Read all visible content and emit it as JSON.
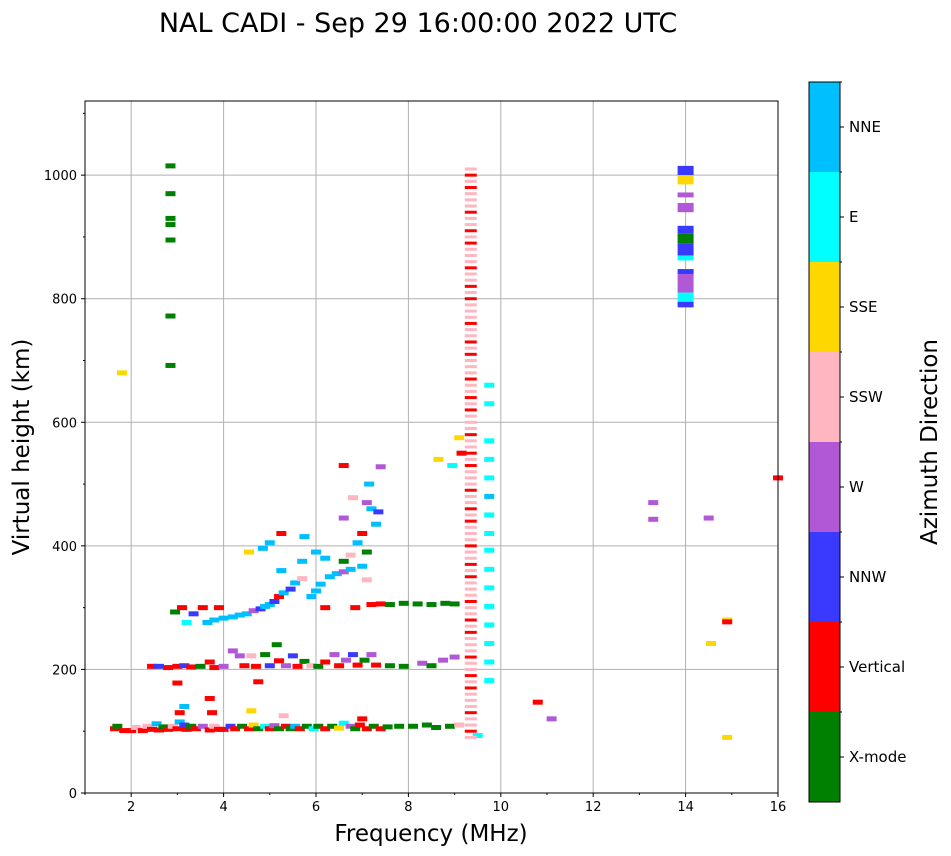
{
  "chart_data": {
    "type": "scatter",
    "title": "NAL CADI - Sep 29 16:00:00 2022 UTC",
    "xlabel": "Frequency (MHz)",
    "ylabel": "Virtual height (km)",
    "xlim": [
      1,
      16
    ],
    "ylim": [
      0,
      1120
    ],
    "xticks": [
      "2",
      "4",
      "6",
      "8",
      "10",
      "12",
      "14",
      "16"
    ],
    "yticks": [
      "0",
      "200",
      "400",
      "600",
      "800",
      "1000"
    ],
    "grid": true,
    "colorbar": {
      "label": "Azimuth Direction",
      "categories": [
        {
          "name": "X-mode",
          "color": "#008000"
        },
        {
          "name": "Vertical",
          "color": "#ff0000"
        },
        {
          "name": "NNW",
          "color": "#3a3aff"
        },
        {
          "name": "W",
          "color": "#b158d6"
        },
        {
          "name": "SSW",
          "color": "#ffb6c1"
        },
        {
          "name": "SSE",
          "color": "#ffd700"
        },
        {
          "name": "E",
          "color": "#00ffff"
        },
        {
          "name": "NNE",
          "color": "#00bfff"
        }
      ]
    },
    "points": [
      {
        "f": 1.65,
        "h": 104,
        "c": "Vertical"
      },
      {
        "f": 1.7,
        "h": 108,
        "c": "X-mode"
      },
      {
        "f": 1.85,
        "h": 101,
        "c": "Vertical"
      },
      {
        "f": 1.8,
        "h": 680,
        "c": "SSE"
      },
      {
        "f": 2.0,
        "h": 101,
        "c": "Vertical"
      },
      {
        "f": 2.1,
        "h": 106,
        "c": "SSW"
      },
      {
        "f": 2.25,
        "h": 101,
        "c": "Vertical"
      },
      {
        "f": 2.35,
        "h": 108,
        "c": "SSW"
      },
      {
        "f": 2.45,
        "h": 103,
        "c": "Vertical"
      },
      {
        "f": 2.55,
        "h": 112,
        "c": "NNE"
      },
      {
        "f": 2.6,
        "h": 102,
        "c": "Vertical"
      },
      {
        "f": 2.7,
        "h": 107,
        "c": "X-mode"
      },
      {
        "f": 2.8,
        "h": 103,
        "c": "Vertical"
      },
      {
        "f": 2.9,
        "h": 108,
        "c": "SSW"
      },
      {
        "f": 3.0,
        "h": 104,
        "c": "Vertical"
      },
      {
        "f": 3.05,
        "h": 115,
        "c": "NNE"
      },
      {
        "f": 3.15,
        "h": 110,
        "c": "NNW"
      },
      {
        "f": 3.2,
        "h": 103,
        "c": "Vertical"
      },
      {
        "f": 3.3,
        "h": 108,
        "c": "X-mode"
      },
      {
        "f": 3.4,
        "h": 104,
        "c": "Vertical"
      },
      {
        "f": 3.55,
        "h": 108,
        "c": "W"
      },
      {
        "f": 3.7,
        "h": 102,
        "c": "Vertical"
      },
      {
        "f": 3.8,
        "h": 108,
        "c": "SSW"
      },
      {
        "f": 3.9,
        "h": 103,
        "c": "Vertical"
      },
      {
        "f": 4.0,
        "h": 103,
        "c": "Vertical"
      },
      {
        "f": 4.15,
        "h": 108,
        "c": "NNW"
      },
      {
        "f": 4.25,
        "h": 104,
        "c": "Vertical"
      },
      {
        "f": 4.4,
        "h": 108,
        "c": "X-mode"
      },
      {
        "f": 4.55,
        "h": 104,
        "c": "Vertical"
      },
      {
        "f": 4.65,
        "h": 110,
        "c": "SSE"
      },
      {
        "f": 4.75,
        "h": 104,
        "c": "X-mode"
      },
      {
        "f": 4.9,
        "h": 108,
        "c": "E"
      },
      {
        "f": 5.0,
        "h": 104,
        "c": "Vertical"
      },
      {
        "f": 5.1,
        "h": 109,
        "c": "W"
      },
      {
        "f": 5.2,
        "h": 104,
        "c": "X-mode"
      },
      {
        "f": 5.35,
        "h": 108,
        "c": "Vertical"
      },
      {
        "f": 5.45,
        "h": 104,
        "c": "X-mode"
      },
      {
        "f": 5.55,
        "h": 108,
        "c": "NNE"
      },
      {
        "f": 5.65,
        "h": 104,
        "c": "Vertical"
      },
      {
        "f": 5.8,
        "h": 108,
        "c": "X-mode"
      },
      {
        "f": 5.95,
        "h": 104,
        "c": "E"
      },
      {
        "f": 6.05,
        "h": 108,
        "c": "X-mode"
      },
      {
        "f": 6.2,
        "h": 104,
        "c": "Vertical"
      },
      {
        "f": 6.35,
        "h": 108,
        "c": "X-mode"
      },
      {
        "f": 6.5,
        "h": 105,
        "c": "SSE"
      },
      {
        "f": 6.6,
        "h": 113,
        "c": "E"
      },
      {
        "f": 6.75,
        "h": 108,
        "c": "W"
      },
      {
        "f": 6.85,
        "h": 104,
        "c": "X-mode"
      },
      {
        "f": 6.95,
        "h": 110,
        "c": "Vertical"
      },
      {
        "f": 7.1,
        "h": 104,
        "c": "Vertical"
      },
      {
        "f": 7.25,
        "h": 108,
        "c": "X-mode"
      },
      {
        "f": 7.4,
        "h": 104,
        "c": "Vertical"
      },
      {
        "f": 7.55,
        "h": 107,
        "c": "X-mode"
      },
      {
        "f": 7.8,
        "h": 108,
        "c": "X-mode"
      },
      {
        "f": 8.1,
        "h": 108,
        "c": "X-mode"
      },
      {
        "f": 8.4,
        "h": 110,
        "c": "X-mode"
      },
      {
        "f": 8.6,
        "h": 106,
        "c": "X-mode"
      },
      {
        "f": 8.9,
        "h": 108,
        "c": "X-mode"
      },
      {
        "f": 9.1,
        "h": 110,
        "c": "SSW"
      },
      {
        "f": 3.0,
        "h": 178,
        "c": "Vertical"
      },
      {
        "f": 3.05,
        "h": 130,
        "c": "Vertical"
      },
      {
        "f": 3.15,
        "h": 140,
        "c": "NNE"
      },
      {
        "f": 3.7,
        "h": 153,
        "c": "Vertical"
      },
      {
        "f": 3.75,
        "h": 130,
        "c": "Vertical"
      },
      {
        "f": 4.6,
        "h": 133,
        "c": "SSE"
      },
      {
        "f": 4.75,
        "h": 180,
        "c": "Vertical"
      },
      {
        "f": 5.3,
        "h": 125,
        "c": "SSW"
      },
      {
        "f": 7.0,
        "h": 120,
        "c": "Vertical"
      },
      {
        "f": 9.5,
        "h": 93,
        "c": "E"
      },
      {
        "f": 10.8,
        "h": 147,
        "c": "Vertical"
      },
      {
        "f": 11.1,
        "h": 120,
        "c": "W"
      },
      {
        "f": 14.9,
        "h": 90,
        "c": "SSE"
      },
      {
        "f": 2.45,
        "h": 205,
        "c": "Vertical"
      },
      {
        "f": 2.6,
        "h": 205,
        "c": "NNW"
      },
      {
        "f": 2.8,
        "h": 203,
        "c": "Vertical"
      },
      {
        "f": 3.0,
        "h": 205,
        "c": "Vertical"
      },
      {
        "f": 3.15,
        "h": 206,
        "c": "NNW"
      },
      {
        "f": 3.3,
        "h": 204,
        "c": "Vertical"
      },
      {
        "f": 3.5,
        "h": 205,
        "c": "X-mode"
      },
      {
        "f": 3.7,
        "h": 212,
        "c": "Vertical"
      },
      {
        "f": 3.8,
        "h": 203,
        "c": "Vertical"
      },
      {
        "f": 4.0,
        "h": 205,
        "c": "W"
      },
      {
        "f": 4.2,
        "h": 230,
        "c": "W"
      },
      {
        "f": 4.35,
        "h": 222,
        "c": "W"
      },
      {
        "f": 4.45,
        "h": 206,
        "c": "Vertical"
      },
      {
        "f": 4.6,
        "h": 222,
        "c": "SSW"
      },
      {
        "f": 4.7,
        "h": 205,
        "c": "Vertical"
      },
      {
        "f": 4.9,
        "h": 224,
        "c": "X-mode"
      },
      {
        "f": 5.0,
        "h": 206,
        "c": "NNW"
      },
      {
        "f": 5.15,
        "h": 240,
        "c": "X-mode"
      },
      {
        "f": 5.2,
        "h": 214,
        "c": "Vertical"
      },
      {
        "f": 5.35,
        "h": 206,
        "c": "W"
      },
      {
        "f": 5.5,
        "h": 222,
        "c": "NNW"
      },
      {
        "f": 5.6,
        "h": 205,
        "c": "Vertical"
      },
      {
        "f": 5.75,
        "h": 213,
        "c": "X-mode"
      },
      {
        "f": 5.9,
        "h": 206,
        "c": "SSW"
      },
      {
        "f": 6.05,
        "h": 205,
        "c": "X-mode"
      },
      {
        "f": 6.2,
        "h": 212,
        "c": "Vertical"
      },
      {
        "f": 6.4,
        "h": 224,
        "c": "W"
      },
      {
        "f": 6.5,
        "h": 206,
        "c": "Vertical"
      },
      {
        "f": 6.65,
        "h": 215,
        "c": "W"
      },
      {
        "f": 6.8,
        "h": 224,
        "c": "NNW"
      },
      {
        "f": 6.9,
        "h": 207,
        "c": "Vertical"
      },
      {
        "f": 7.05,
        "h": 215,
        "c": "X-mode"
      },
      {
        "f": 7.2,
        "h": 224,
        "c": "W"
      },
      {
        "f": 7.3,
        "h": 207,
        "c": "Vertical"
      },
      {
        "f": 7.6,
        "h": 206,
        "c": "X-mode"
      },
      {
        "f": 7.9,
        "h": 205,
        "c": "X-mode"
      },
      {
        "f": 8.3,
        "h": 210,
        "c": "W"
      },
      {
        "f": 8.5,
        "h": 206,
        "c": "X-mode"
      },
      {
        "f": 8.75,
        "h": 215,
        "c": "W"
      },
      {
        "f": 9.0,
        "h": 220,
        "c": "W"
      },
      {
        "f": 2.95,
        "h": 293,
        "c": "X-mode"
      },
      {
        "f": 3.1,
        "h": 300,
        "c": "Vertical"
      },
      {
        "f": 3.2,
        "h": 276,
        "c": "E"
      },
      {
        "f": 3.35,
        "h": 290,
        "c": "NNW"
      },
      {
        "f": 3.55,
        "h": 300,
        "c": "Vertical"
      },
      {
        "f": 3.65,
        "h": 276,
        "c": "NNE"
      },
      {
        "f": 3.8,
        "h": 280,
        "c": "NNE"
      },
      {
        "f": 3.9,
        "h": 300,
        "c": "Vertical"
      },
      {
        "f": 4.0,
        "h": 283,
        "c": "NNE"
      },
      {
        "f": 4.2,
        "h": 285,
        "c": "NNE"
      },
      {
        "f": 4.35,
        "h": 288,
        "c": "NNE"
      },
      {
        "f": 4.5,
        "h": 290,
        "c": "NNE"
      },
      {
        "f": 4.65,
        "h": 295,
        "c": "W"
      },
      {
        "f": 4.8,
        "h": 298,
        "c": "NNW"
      },
      {
        "f": 4.9,
        "h": 302,
        "c": "NNE"
      },
      {
        "f": 5.0,
        "h": 305,
        "c": "NNE"
      },
      {
        "f": 5.1,
        "h": 310,
        "c": "NNW"
      },
      {
        "f": 5.2,
        "h": 318,
        "c": "Vertical"
      },
      {
        "f": 5.3,
        "h": 324,
        "c": "NNE"
      },
      {
        "f": 5.45,
        "h": 330,
        "c": "NNW"
      },
      {
        "f": 5.55,
        "h": 340,
        "c": "NNE"
      },
      {
        "f": 5.7,
        "h": 347,
        "c": "SSW"
      },
      {
        "f": 5.9,
        "h": 318,
        "c": "NNE"
      },
      {
        "f": 6.0,
        "h": 327,
        "c": "NNE"
      },
      {
        "f": 6.1,
        "h": 338,
        "c": "NNE"
      },
      {
        "f": 6.2,
        "h": 300,
        "c": "Vertical"
      },
      {
        "f": 6.3,
        "h": 350,
        "c": "NNE"
      },
      {
        "f": 6.45,
        "h": 355,
        "c": "NNE"
      },
      {
        "f": 6.6,
        "h": 358,
        "c": "W"
      },
      {
        "f": 6.75,
        "h": 362,
        "c": "NNE"
      },
      {
        "f": 6.85,
        "h": 300,
        "c": "Vertical"
      },
      {
        "f": 7.0,
        "h": 367,
        "c": "NNE"
      },
      {
        "f": 7.1,
        "h": 345,
        "c": "SSW"
      },
      {
        "f": 7.2,
        "h": 305,
        "c": "Vertical"
      },
      {
        "f": 7.4,
        "h": 306,
        "c": "Vertical"
      },
      {
        "f": 7.6,
        "h": 305,
        "c": "X-mode"
      },
      {
        "f": 7.9,
        "h": 307,
        "c": "X-mode"
      },
      {
        "f": 8.2,
        "h": 306,
        "c": "X-mode"
      },
      {
        "f": 8.5,
        "h": 305,
        "c": "X-mode"
      },
      {
        "f": 8.8,
        "h": 307,
        "c": "X-mode"
      },
      {
        "f": 9.0,
        "h": 306,
        "c": "X-mode"
      },
      {
        "f": 4.55,
        "h": 390,
        "c": "SSE"
      },
      {
        "f": 4.85,
        "h": 396,
        "c": "NNE"
      },
      {
        "f": 5.0,
        "h": 405,
        "c": "NNE"
      },
      {
        "f": 5.25,
        "h": 420,
        "c": "Vertical"
      },
      {
        "f": 5.7,
        "h": 375,
        "c": "NNE"
      },
      {
        "f": 5.75,
        "h": 415,
        "c": "NNE"
      },
      {
        "f": 6.0,
        "h": 390,
        "c": "NNE"
      },
      {
        "f": 6.2,
        "h": 380,
        "c": "NNE"
      },
      {
        "f": 6.6,
        "h": 375,
        "c": "X-mode"
      },
      {
        "f": 6.6,
        "h": 445,
        "c": "W"
      },
      {
        "f": 6.75,
        "h": 385,
        "c": "SSW"
      },
      {
        "f": 6.8,
        "h": 478,
        "c": "SSW"
      },
      {
        "f": 6.9,
        "h": 405,
        "c": "NNE"
      },
      {
        "f": 7.0,
        "h": 420,
        "c": "Vertical"
      },
      {
        "f": 7.1,
        "h": 470,
        "c": "W"
      },
      {
        "f": 7.15,
        "h": 500,
        "c": "NNE"
      },
      {
        "f": 7.2,
        "h": 460,
        "c": "NNE"
      },
      {
        "f": 7.3,
        "h": 435,
        "c": "NNE"
      },
      {
        "f": 7.35,
        "h": 455,
        "c": "NNW"
      },
      {
        "f": 7.4,
        "h": 528,
        "c": "W"
      },
      {
        "f": 7.1,
        "h": 390,
        "c": "X-mode"
      },
      {
        "f": 6.6,
        "h": 530,
        "c": "Vertical"
      },
      {
        "f": 5.25,
        "h": 360,
        "c": "NNE"
      },
      {
        "f": 8.65,
        "h": 540,
        "c": "SSE"
      },
      {
        "f": 8.95,
        "h": 530,
        "c": "E"
      },
      {
        "f": 9.15,
        "h": 550,
        "c": "Vertical"
      },
      {
        "f": 9.1,
        "h": 575,
        "c": "SSE"
      },
      {
        "f": 13.3,
        "h": 470,
        "c": "W"
      },
      {
        "f": 13.3,
        "h": 443,
        "c": "W"
      },
      {
        "f": 14.5,
        "h": 445,
        "c": "W"
      },
      {
        "f": 14.55,
        "h": 242,
        "c": "SSE"
      },
      {
        "f": 14.9,
        "h": 280,
        "c": "SSE"
      },
      {
        "f": 14.9,
        "h": 277,
        "c": "Vertical"
      },
      {
        "f": 16.0,
        "h": 510,
        "c": "Vertical"
      },
      {
        "f": 2.85,
        "h": 1015,
        "c": "X-mode"
      },
      {
        "f": 2.85,
        "h": 970,
        "c": "X-mode"
      },
      {
        "f": 2.85,
        "h": 930,
        "c": "X-mode"
      },
      {
        "f": 2.85,
        "h": 920,
        "c": "X-mode"
      },
      {
        "f": 2.85,
        "h": 895,
        "c": "X-mode"
      },
      {
        "f": 2.85,
        "h": 772,
        "c": "X-mode"
      },
      {
        "f": 2.85,
        "h": 692,
        "c": "X-mode"
      },
      {
        "f": 9.75,
        "h": 660,
        "c": "E"
      },
      {
        "f": 9.75,
        "h": 630,
        "c": "E"
      },
      {
        "f": 9.75,
        "h": 570,
        "c": "E"
      },
      {
        "f": 9.75,
        "h": 540,
        "c": "E"
      },
      {
        "f": 9.75,
        "h": 510,
        "c": "E"
      },
      {
        "f": 9.75,
        "h": 480,
        "c": "NNE"
      },
      {
        "f": 9.75,
        "h": 450,
        "c": "E"
      },
      {
        "f": 9.75,
        "h": 420,
        "c": "E"
      },
      {
        "f": 9.75,
        "h": 393,
        "c": "E"
      },
      {
        "f": 9.75,
        "h": 362,
        "c": "E"
      },
      {
        "f": 9.75,
        "h": 332,
        "c": "E"
      },
      {
        "f": 9.75,
        "h": 302,
        "c": "E"
      },
      {
        "f": 9.75,
        "h": 272,
        "c": "E"
      },
      {
        "f": 9.75,
        "h": 242,
        "c": "E"
      },
      {
        "f": 9.75,
        "h": 212,
        "c": "E"
      },
      {
        "f": 9.75,
        "h": 182,
        "c": "E"
      }
    ],
    "vertical_streak": {
      "f": 9.35,
      "colors": [
        "SSW",
        "Vertical",
        "SSW",
        "SSW",
        "Vertical",
        "SSW",
        "SSW",
        "SSW",
        "Vertical"
      ],
      "h_min": 90,
      "h_max": 1010,
      "step": 10
    },
    "stack_14mhz": {
      "f": 14.0,
      "segments": [
        {
          "h0": 1000,
          "h1": 1015,
          "c": "NNW"
        },
        {
          "h0": 985,
          "h1": 1000,
          "c": "SSE"
        },
        {
          "h0": 964,
          "h1": 972,
          "c": "W"
        },
        {
          "h0": 940,
          "h1": 955,
          "c": "W"
        },
        {
          "h0": 905,
          "h1": 918,
          "c": "NNW"
        },
        {
          "h0": 890,
          "h1": 905,
          "c": "X-mode"
        },
        {
          "h0": 870,
          "h1": 890,
          "c": "NNW"
        },
        {
          "h0": 862,
          "h1": 870,
          "c": "E"
        },
        {
          "h0": 840,
          "h1": 848,
          "c": "NNW"
        },
        {
          "h0": 810,
          "h1": 840,
          "c": "W"
        },
        {
          "h0": 795,
          "h1": 810,
          "c": "E"
        },
        {
          "h0": 786,
          "h1": 795,
          "c": "NNW"
        }
      ]
    }
  }
}
